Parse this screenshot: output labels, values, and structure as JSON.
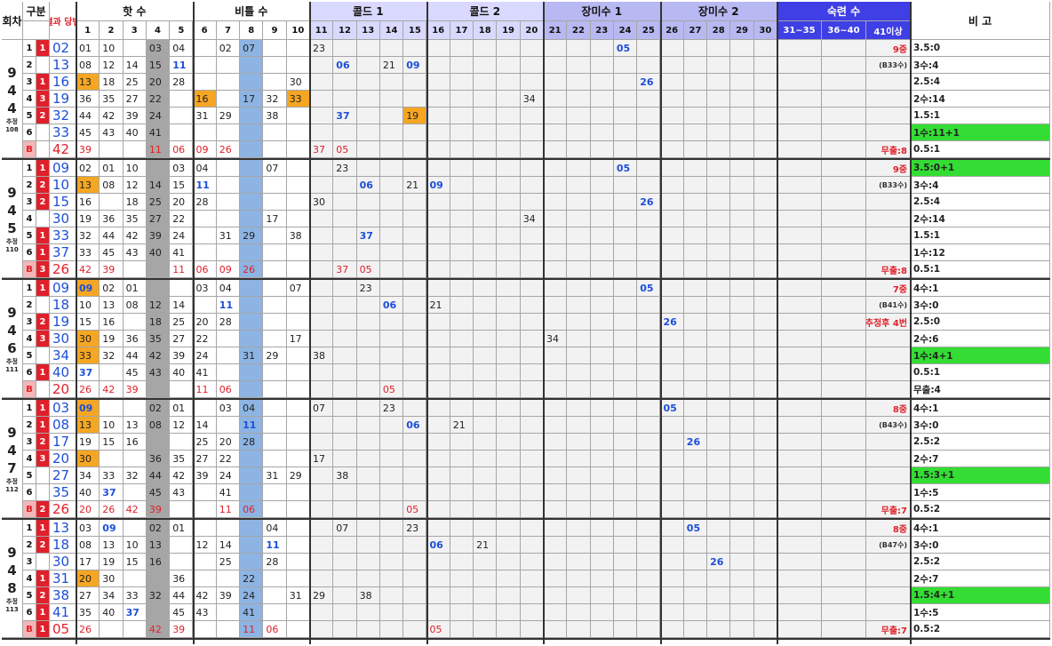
{
  "header": {
    "col1": "회차",
    "col2": "구분",
    "col3": "결과 당번",
    "col4": "비 고",
    "groups": [
      "핫 수",
      "비틀 수",
      "콜드 1",
      "콜드 2",
      "장미수 1",
      "장미수 2",
      "숙련 수"
    ],
    "numbers": [
      "1",
      "2",
      "3",
      "4",
      "5",
      "6",
      "7",
      "8",
      "9",
      "10",
      "11",
      "12",
      "13",
      "14",
      "15",
      "16",
      "17",
      "18",
      "19",
      "20",
      "21",
      "22",
      "23",
      "24",
      "25",
      "26",
      "27",
      "28",
      "29",
      "30"
    ],
    "ranges": [
      "31~35",
      "36~40",
      "41이상"
    ]
  },
  "colors": {
    "group_headers": [
      "#ffffff",
      "#ffffff",
      "#d9d9ff",
      "#d9d9ff",
      "#b8b8f2",
      "#b8b8f2",
      "#3f3fe6"
    ],
    "col8_blue": "#8db4e2",
    "col4_gray": "#a6a6a6",
    "col3_tan": "#eeecc8",
    "orange": "#f5a623",
    "cyan": "#33ccff",
    "green": "#33dd33",
    "red": "#e0202a",
    "blue_text": "#1c4fd9"
  },
  "blocks": [
    {
      "round": [
        "9",
        "4",
        "4"
      ],
      "label": "추정 108",
      "rows": [
        {
          "r": "1",
          "s": "1",
          "res": "02",
          "nums": {
            "1": "01",
            "2": "10",
            "4": "03",
            "5": "04",
            "7": "02",
            "8": "07",
            "11": "23",
            "13": "",
            "24": "05"
          },
          "right": "9중",
          "note": "3.5:0"
        },
        {
          "r": "2",
          "s": "",
          "res": "13",
          "nums": {
            "1": "08",
            "2": "12",
            "3": "14",
            "4": "15",
            "5": "11",
            "12": "06",
            "14": "21",
            "15": "09"
          },
          "right": "(B33수)",
          "note": "3수:4"
        },
        {
          "r": "3",
          "s": "1",
          "res": "16",
          "nums": {
            "1": "13",
            "2": "18",
            "3": "25",
            "4": "20",
            "5": "28",
            "10": "30",
            "25": "26"
          },
          "right": "",
          "note": "2.5:4"
        },
        {
          "r": "4",
          "s": "3",
          "res": "19",
          "nums": {
            "1": "36",
            "2": "35",
            "3": "27",
            "4": "22",
            "6": "16",
            "8": "17",
            "9": "32",
            "10": "33",
            "20": "34"
          },
          "right": "",
          "note": "2수:14"
        },
        {
          "r": "5",
          "s": "2",
          "res": "32",
          "nums": {
            "1": "44",
            "2": "42",
            "3": "39",
            "4": "24",
            "6": "31",
            "7": "29",
            "9": "38",
            "12": "37",
            "15": "19"
          },
          "right": "",
          "note": "1.5:1"
        },
        {
          "r": "6",
          "s": "",
          "res": "33",
          "nums": {
            "1": "45",
            "2": "43",
            "3": "40",
            "4": "41"
          },
          "right": "",
          "note": "1수:11+1"
        },
        {
          "r": "B",
          "s": "",
          "res": "42",
          "nums": {
            "1": "39",
            "4": "11",
            "5": "06",
            "6": "09",
            "7": "26",
            "11": "37",
            "12": "05"
          },
          "right": "무출:8",
          "note": "0.5:1"
        }
      ]
    },
    {
      "round": [
        "9",
        "4",
        "5"
      ],
      "label": "추정 110",
      "rows": [
        {
          "r": "1",
          "s": "1",
          "res": "09",
          "nums": {
            "1": "02",
            "2": "01",
            "3": "10",
            "5": "03",
            "6": "04",
            "9": "07",
            "12": "23",
            "24": "05"
          },
          "right": "9중",
          "note": "3.5:0+1"
        },
        {
          "r": "2",
          "s": "2",
          "res": "10",
          "nums": {
            "1": "13",
            "2": "08",
            "3": "12",
            "4": "14",
            "5": "15",
            "6": "11",
            "13": "06",
            "15": "21",
            "16": "09"
          },
          "right": "(B33수)",
          "note": "3수:4"
        },
        {
          "r": "3",
          "s": "2",
          "res": "15",
          "nums": {
            "1": "16",
            "3": "18",
            "4": "25",
            "5": "20",
            "6": "28",
            "11": "30",
            "25": "26"
          },
          "right": "",
          "note": "2.5:4"
        },
        {
          "r": "4",
          "s": "",
          "res": "30",
          "nums": {
            "1": "19",
            "2": "36",
            "3": "35",
            "4": "27",
            "5": "22",
            "9": "17",
            "20": "34"
          },
          "right": "",
          "note": "2수:14"
        },
        {
          "r": "5",
          "s": "1",
          "res": "33",
          "nums": {
            "1": "32",
            "2": "44",
            "3": "42",
            "4": "39",
            "5": "24",
            "7": "31",
            "8": "29",
            "10": "38",
            "13": "37"
          },
          "right": "",
          "note": "1.5:1"
        },
        {
          "r": "6",
          "s": "1",
          "res": "37",
          "nums": {
            "1": "33",
            "2": "45",
            "3": "43",
            "4": "40",
            "5": "41"
          },
          "right": "",
          "note": "1수:12"
        },
        {
          "r": "B",
          "s": "3",
          "res": "26",
          "nums": {
            "1": "42",
            "2": "39",
            "5": "11",
            "6": "06",
            "7": "09",
            "8": "26",
            "12": "37",
            "13": "05"
          },
          "right": "무출:8",
          "note": "0.5:1"
        }
      ]
    },
    {
      "round": [
        "9",
        "4",
        "6"
      ],
      "label": "추정 111",
      "rows": [
        {
          "r": "1",
          "s": "1",
          "res": "09",
          "nums": {
            "1": "09",
            "2": "02",
            "3": "01",
            "6": "03",
            "7": "04",
            "10": "07",
            "13": "23",
            "25": "05"
          },
          "right": "7중",
          "note": "4수:1"
        },
        {
          "r": "2",
          "s": "",
          "res": "18",
          "nums": {
            "1": "10",
            "2": "13",
            "3": "08",
            "4": "12",
            "5": "14",
            "7": "11",
            "14": "06",
            "16": "21"
          },
          "right": "(B41수)",
          "note": "3수:0"
        },
        {
          "r": "3",
          "s": "2",
          "res": "19",
          "nums": {
            "1": "15",
            "2": "16",
            "4": "18",
            "5": "25",
            "6": "20",
            "7": "28",
            "26": "26"
          },
          "right": "추정후 4번",
          "note": "2.5:0"
        },
        {
          "r": "4",
          "s": "3",
          "res": "30",
          "nums": {
            "1": "30",
            "2": "19",
            "3": "36",
            "4": "35",
            "5": "27",
            "6": "22",
            "10": "17",
            "21": "34"
          },
          "right": "",
          "note": "2수:6"
        },
        {
          "r": "5",
          "s": "",
          "res": "34",
          "nums": {
            "1": "33",
            "2": "32",
            "3": "44",
            "4": "42",
            "5": "39",
            "6": "24",
            "8": "31",
            "9": "29",
            "11": "38"
          },
          "right": "",
          "note": "1수:4+1"
        },
        {
          "r": "6",
          "s": "1",
          "res": "40",
          "nums": {
            "1": "37",
            "3": "45",
            "4": "43",
            "5": "40",
            "6": "41"
          },
          "right": "",
          "note": "0.5:1"
        },
        {
          "r": "B",
          "s": "",
          "res": "20",
          "nums": {
            "1": "26",
            "2": "42",
            "3": "39",
            "6": "11",
            "7": "06",
            "14": "05"
          },
          "right": "",
          "note": "무출:4"
        }
      ]
    },
    {
      "round": [
        "9",
        "4",
        "7"
      ],
      "label": "추정 112",
      "rows": [
        {
          "r": "1",
          "s": "1",
          "res": "03",
          "nums": {
            "1": "09",
            "4": "02",
            "5": "01",
            "7": "03",
            "8": "04",
            "11": "07",
            "14": "23",
            "26": "05"
          },
          "right": "8중",
          "note": "4수:1"
        },
        {
          "r": "2",
          "s": "1",
          "res": "08",
          "nums": {
            "1": "13",
            "2": "10",
            "3": "13",
            "4": "08",
            "5": "12",
            "6": "14",
            "8": "11",
            "15": "06",
            "17": "21"
          },
          "right": "(B43수)",
          "note": "3수:0"
        },
        {
          "r": "3",
          "s": "2",
          "res": "17",
          "nums": {
            "1": "19",
            "2": "15",
            "3": "16",
            "6": "25",
            "7": "20",
            "8": "28",
            "27": "26"
          },
          "right": "",
          "note": "2.5:2"
        },
        {
          "r": "4",
          "s": "3",
          "res": "20",
          "nums": {
            "1": "30",
            "4": "36",
            "5": "35",
            "6": "27",
            "7": "22",
            "11": "17"
          },
          "right": "",
          "note": "2수:7"
        },
        {
          "r": "5",
          "s": "",
          "res": "27",
          "nums": {
            "1": "34",
            "2": "33",
            "3": "32",
            "4": "44",
            "5": "42",
            "6": "39",
            "7": "24",
            "9": "31",
            "10": "29",
            "12": "38"
          },
          "right": "",
          "note": "1.5:3+1"
        },
        {
          "r": "6",
          "s": "",
          "res": "35",
          "nums": {
            "1": "40",
            "2": "37",
            "4": "45",
            "5": "43",
            "7": "41"
          },
          "right": "",
          "note": "1수:5"
        },
        {
          "r": "B",
          "s": "2",
          "res": "26",
          "nums": {
            "1": "20",
            "2": "26",
            "3": "42",
            "4": "39",
            "7": "11",
            "8": "06",
            "15": "05"
          },
          "right": "무출:7",
          "note": "0.5:2"
        }
      ]
    },
    {
      "round": [
        "9",
        "4",
        "8"
      ],
      "label": "추정 113",
      "rows": [
        {
          "r": "1",
          "s": "1",
          "res": "13",
          "nums": {
            "1": "03",
            "2": "09",
            "4": "02",
            "5": "01",
            "9": "04",
            "12": "07",
            "15": "23",
            "27": "05"
          },
          "right": "8중",
          "note": "4수:1"
        },
        {
          "r": "2",
          "s": "2",
          "res": "18",
          "nums": {
            "1": "08",
            "2": "13",
            "3": "10",
            "4": "13",
            "6": "12",
            "7": "14",
            "9": "11",
            "16": "06",
            "18": "21"
          },
          "right": "(B47수)",
          "note": "3수:0"
        },
        {
          "r": "3",
          "s": "",
          "res": "30",
          "nums": {
            "1": "17",
            "2": "19",
            "3": "15",
            "4": "16",
            "7": "25",
            "9": "28",
            "28": "26"
          },
          "right": "",
          "note": "2.5:2"
        },
        {
          "r": "4",
          "s": "1",
          "res": "31",
          "nums": {
            "1": "20",
            "2": "30",
            "5": "36",
            "8": "22"
          },
          "right": "",
          "note": "2수:7"
        },
        {
          "r": "5",
          "s": "2",
          "res": "38",
          "nums": {
            "1": "27",
            "2": "34",
            "3": "33",
            "4": "32",
            "5": "44",
            "6": "42",
            "7": "39",
            "8": "24",
            "10": "31",
            "11": "29",
            "13": "38"
          },
          "right": "",
          "note": "1.5:4+1"
        },
        {
          "r": "6",
          "s": "1",
          "res": "41",
          "nums": {
            "1": "35",
            "2": "40",
            "3": "37",
            "5": "45",
            "6": "43",
            "8": "41"
          },
          "right": "",
          "note": "1수:5"
        },
        {
          "r": "B",
          "s": "1",
          "res": "05",
          "nums": {
            "1": "26",
            "4": "42",
            "5": "39",
            "8": "11",
            "9": "06",
            "16": "05"
          },
          "right": "무출:7",
          "note": "0.5:2"
        }
      ]
    }
  ]
}
